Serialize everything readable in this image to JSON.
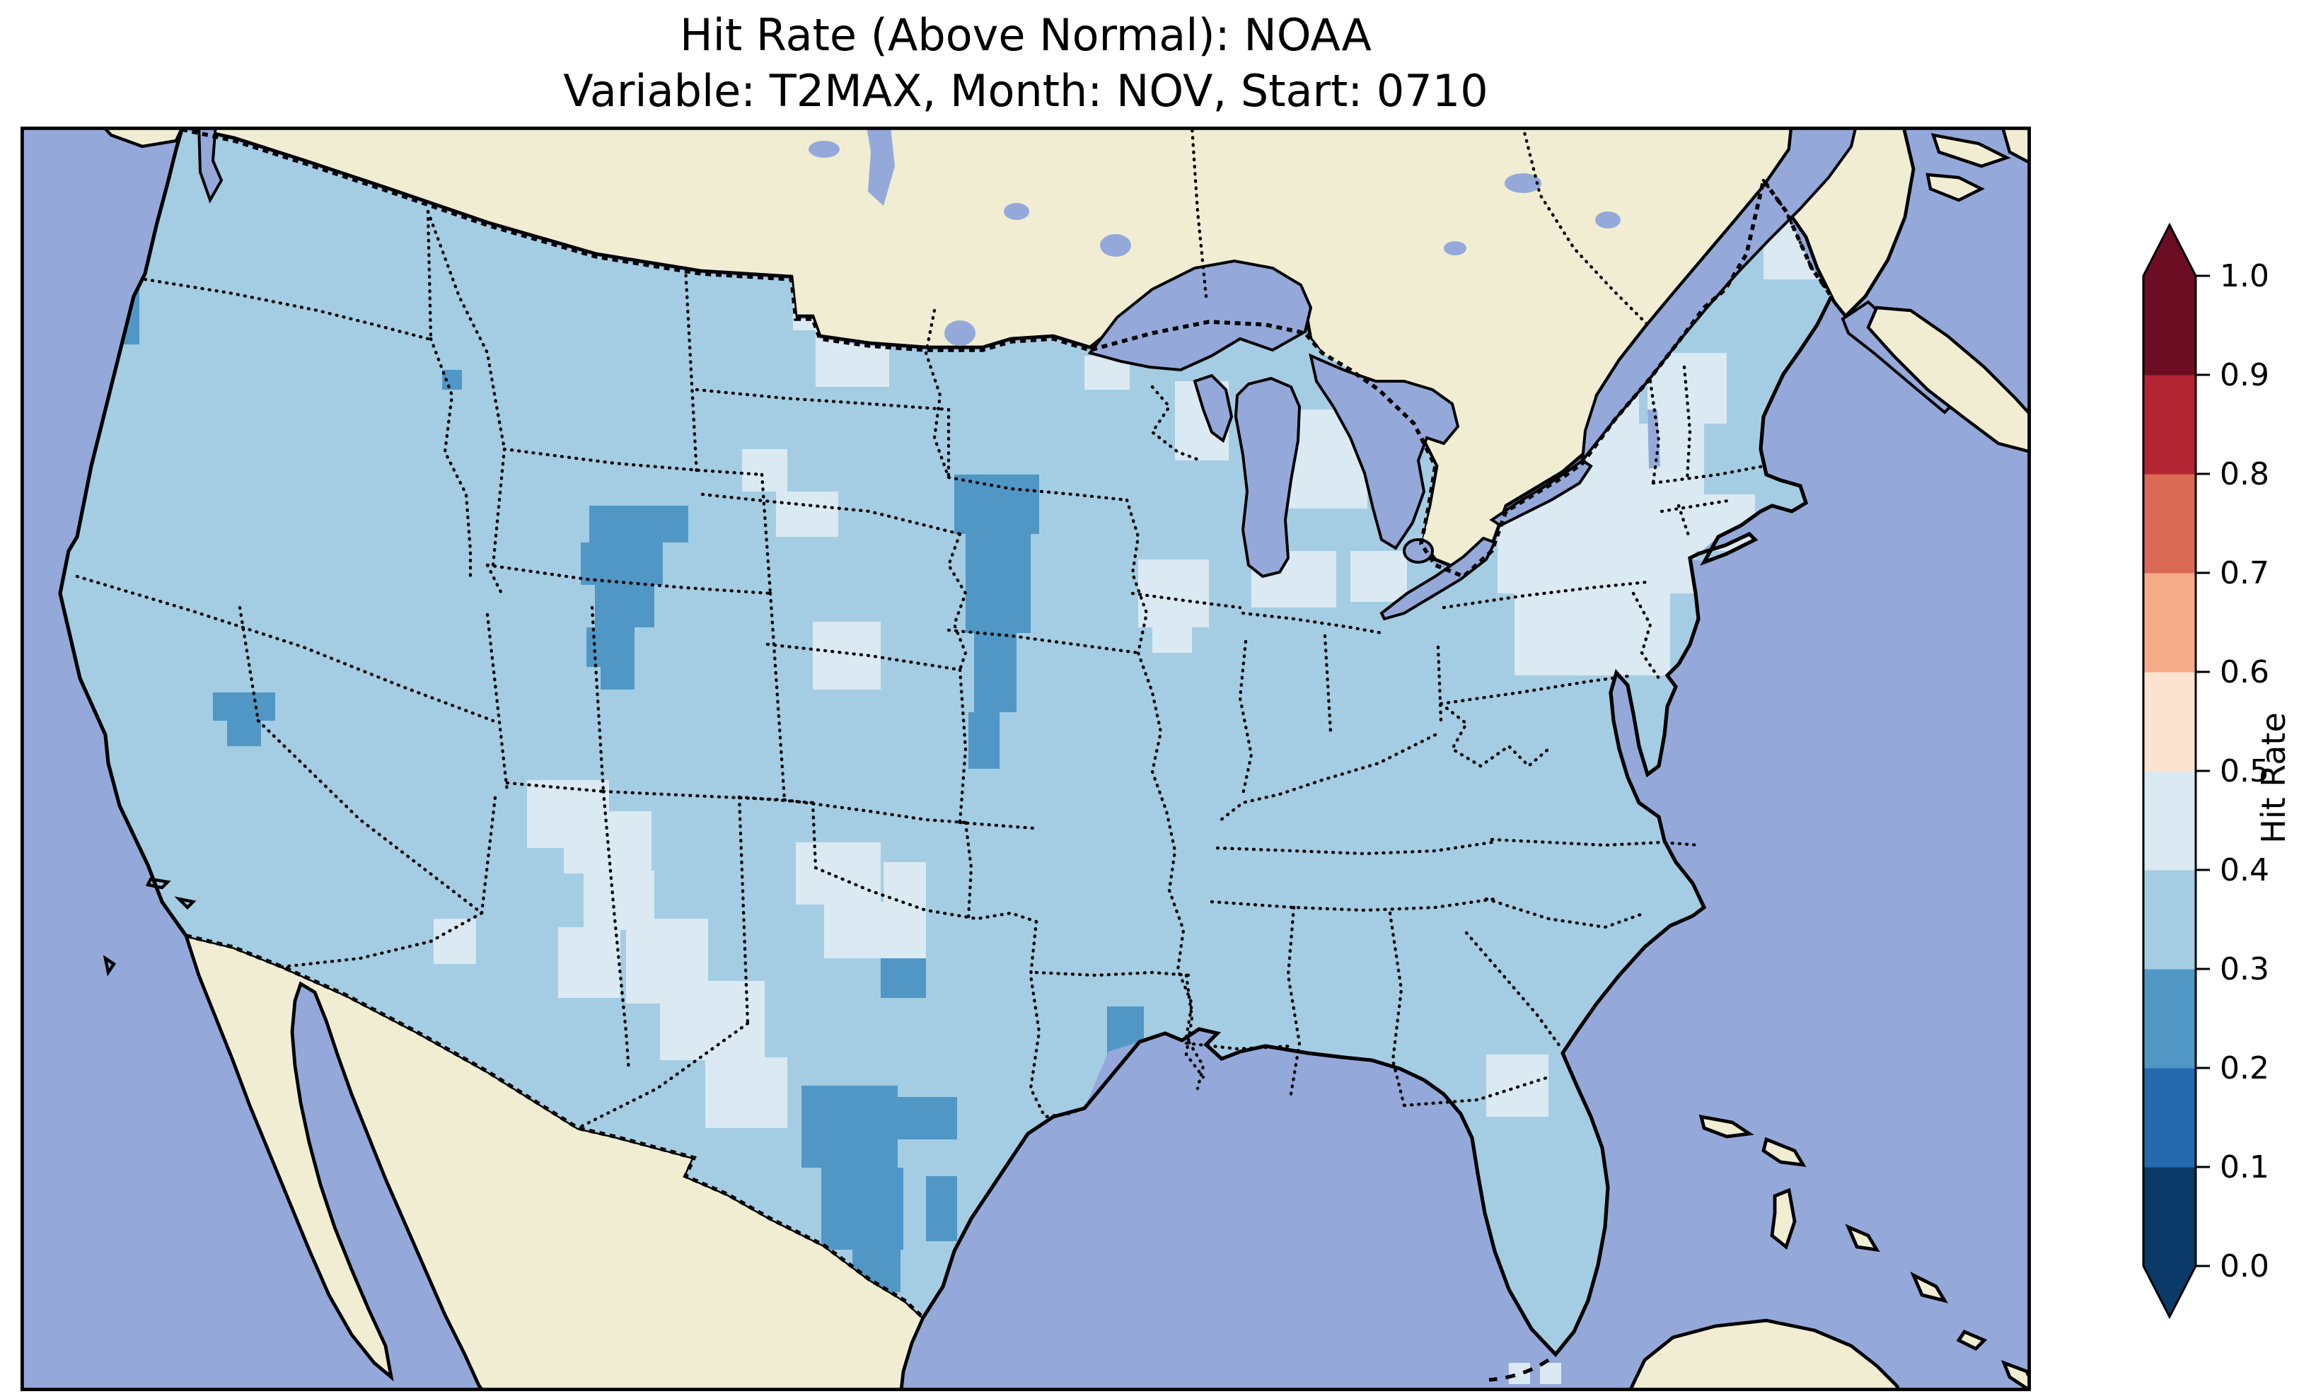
{
  "title": {
    "line1": "Hit Rate (Above Normal): NOAA",
    "line2": "Variable: T2MAX, Month: NOV, Start: 0710"
  },
  "colorbar": {
    "label": "Hit Rate",
    "tick_labels": [
      "1.0",
      "0.9",
      "0.8",
      "0.7",
      "0.6",
      "0.5",
      "0.4",
      "0.3",
      "0.2",
      "0.1",
      "0.0"
    ],
    "extend": "both"
  },
  "chart_data": {
    "type": "heatmap",
    "title": "Hit Rate (Above Normal): NOAA",
    "subtitle": "Variable: T2MAX, Month: NOV, Start: 0710",
    "metric": "Hit Rate (Above Normal)",
    "source": "NOAA",
    "variable": "T2MAX",
    "month": "NOV",
    "start": "0710",
    "region": "Contiguous United States",
    "colorbar_label": "Hit Rate",
    "value_range": [
      0.0,
      1.0
    ],
    "bin_width": 0.1,
    "levels": [
      0.0,
      0.1,
      0.2,
      0.3,
      0.4,
      0.5,
      0.6,
      0.7,
      0.8,
      0.9,
      1.0
    ],
    "palette_low_to_high": [
      "#0b3a68",
      "#2569ae",
      "#5097c6",
      "#a4cde3",
      "#dbe9f2",
      "#fbe3d0",
      "#f5ab88",
      "#da6a54",
      "#b42533",
      "#6c0d23"
    ],
    "base_bin": "0.3-0.4",
    "anomaly_summary": {
      "lower_hit_rate_0.2_0.3": [
        "Washington/Oregon coast",
        "Northeastern California",
        "Central Colorado Rockies into SE Wyoming",
        "Single cell in Idaho",
        "Eastern Nebraska / western Iowa along the Missouri River",
        "South Texas Gulf Coast",
        "Single cell in central Texas",
        "Single cell in northeast Louisiana"
      ],
      "higher_hit_rate_0.4_0.5": [
        "Western/northern Minnesota and eastern Dakotas",
        "South Dakota / Nebraska cells",
        "Northern Wisconsin and Door Peninsula",
        "Lower Michigan",
        "Illinois single patch",
        "New York, Pennsylvania and New England",
        "Northern Maine",
        "Kansas / Oklahoma / Missouri patch",
        "New Mexico and far west Texas",
        "Florida Panhandle",
        "Two cells near the Florida Keys"
      ]
    },
    "cells_unit": "svg viewBox px (1421 x 894), bin color keyed",
    "cells": {
      "dark_0.2_0.3": [
        [
          62,
          114,
          22,
          40
        ],
        [
          136,
          400,
          44,
          20
        ],
        [
          146,
          420,
          24,
          18
        ],
        [
          298,
          172,
          14,
          14
        ],
        [
          402,
          268,
          70,
          26
        ],
        [
          396,
          294,
          58,
          30
        ],
        [
          406,
          324,
          42,
          30
        ],
        [
          400,
          354,
          34,
          28
        ],
        [
          410,
          380,
          24,
          18
        ],
        [
          660,
          246,
          60,
          42
        ],
        [
          668,
          288,
          46,
          70
        ],
        [
          674,
          358,
          30,
          56
        ],
        [
          670,
          414,
          22,
          40
        ],
        [
          552,
          678,
          68,
          58
        ],
        [
          566,
          736,
          58,
          58
        ],
        [
          588,
          794,
          34,
          30
        ],
        [
          620,
          686,
          42,
          30
        ],
        [
          640,
          742,
          22,
          46
        ],
        [
          608,
          584,
          32,
          32
        ],
        [
          768,
          622,
          26,
          44
        ]
      ],
      "light_0.4_0.5": [
        [
          546,
          98,
          72,
          46
        ],
        [
          562,
          142,
          52,
          42
        ],
        [
          510,
          228,
          32,
          30
        ],
        [
          534,
          258,
          44,
          32
        ],
        [
          560,
          350,
          48,
          48
        ],
        [
          752,
          162,
          32,
          24
        ],
        [
          816,
          180,
          38,
          56
        ],
        [
          896,
          200,
          56,
          70
        ],
        [
          870,
          300,
          60,
          40
        ],
        [
          790,
          306,
          50,
          48
        ],
        [
          800,
          354,
          28,
          18
        ],
        [
          940,
          300,
          40,
          36
        ],
        [
          1044,
          150,
          100,
          60
        ],
        [
          1150,
          160,
          56,
          50
        ],
        [
          1060,
          210,
          130,
          60
        ],
        [
          1044,
          270,
          140,
          60
        ],
        [
          1056,
          330,
          110,
          58
        ],
        [
          1180,
          260,
          46,
          40
        ],
        [
          1216,
          44,
          56,
          36
        ],
        [
          1232,
          80,
          40,
          28
        ],
        [
          548,
          506,
          60,
          44
        ],
        [
          568,
          548,
          72,
          40
        ],
        [
          610,
          520,
          30,
          30
        ],
        [
          384,
          484,
          62,
          44
        ],
        [
          398,
          526,
          50,
          42
        ],
        [
          380,
          566,
          44,
          50
        ],
        [
          428,
          560,
          58,
          46
        ],
        [
          452,
          604,
          74,
          56
        ],
        [
          484,
          658,
          58,
          50
        ],
        [
          292,
          560,
          30,
          32
        ],
        [
          358,
          462,
          58,
          48
        ],
        [
          428,
          588,
          48,
          32
        ],
        [
          452,
          616,
          56,
          32
        ],
        [
          1036,
          656,
          44,
          44
        ]
      ],
      "light_unclipped": [
        [
          1052,
          874,
          15,
          15
        ],
        [
          1074,
          874,
          15,
          15
        ]
      ]
    }
  },
  "map": {
    "ocean_color": "#94a9da",
    "foreign_land_color": "#f0edd3",
    "coastline_color": "#000000",
    "state_border_style": "dotted black",
    "national_border_style": "dashed black",
    "features": [
      "Great Lakes",
      "St. Lawrence River",
      "Chesapeake Bay",
      "Gulf of Mexico",
      "Gulf of California",
      "Baja California",
      "Cuba",
      "Bahamas",
      "Nova Scotia",
      "Prince Edward Island",
      "Vancouver Island",
      "Lake Winnipeg",
      "Florida Keys"
    ]
  }
}
